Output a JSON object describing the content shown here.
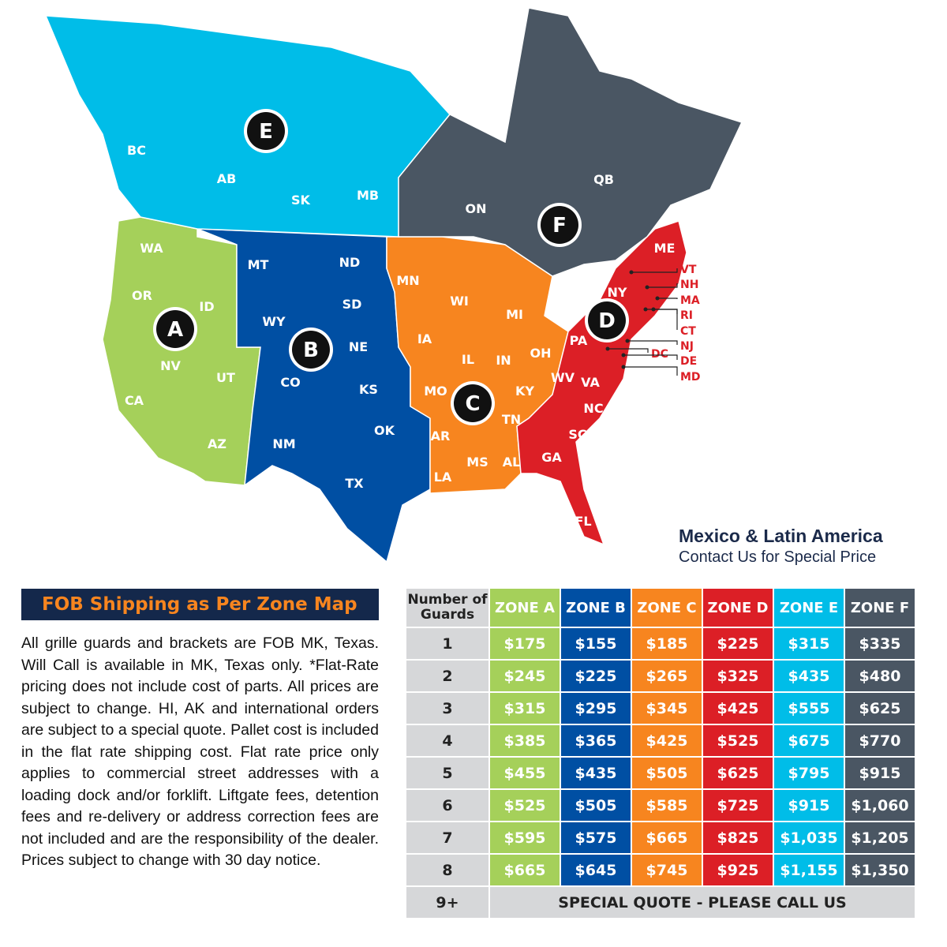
{
  "colors": {
    "A": "#a5d05a",
    "B": "#004fa3",
    "C": "#f7851f",
    "D": "#dc1f26",
    "E": "#00bde8",
    "F": "#4a5663",
    "header_bg": "#14284b",
    "header_text": "#f7851f"
  },
  "map": {
    "zones": [
      {
        "letter": "A",
        "states": [
          "WA",
          "OR",
          "ID",
          "NV",
          "CA",
          "UT",
          "AZ"
        ]
      },
      {
        "letter": "B",
        "states": [
          "MT",
          "ND",
          "SD",
          "WY",
          "NE",
          "CO",
          "KS",
          "NM",
          "OK",
          "TX"
        ]
      },
      {
        "letter": "C",
        "states": [
          "MN",
          "WI",
          "MI",
          "IA",
          "IL",
          "IN",
          "OH",
          "MO",
          "KY",
          "TN",
          "AR",
          "MS",
          "AL",
          "LA"
        ]
      },
      {
        "letter": "D",
        "states": [
          "ME",
          "NY",
          "PA",
          "WV",
          "VA",
          "NC",
          "SC",
          "GA",
          "FL"
        ],
        "callouts": [
          "VT",
          "NH",
          "MA",
          "RI",
          "CT",
          "NJ",
          "DC",
          "DE",
          "MD"
        ]
      },
      {
        "letter": "E",
        "states": [
          "BC",
          "AB",
          "SK",
          "MB"
        ]
      },
      {
        "letter": "F",
        "states": [
          "ON",
          "QB"
        ]
      }
    ]
  },
  "mexico": {
    "title": "Mexico & Latin America",
    "subtitle": "Contact Us for Special Price"
  },
  "info": {
    "title": "FOB Shipping as Per Zone Map",
    "text": "All grille guards and brackets are FOB MK, Texas. Will Call is available in MK, Texas only. *Flat-Rate pricing does not include cost of parts. All prices are subject to change. HI, AK and international orders are subject to a special quote. Pallet cost is included in the flat rate shipping cost. Flat rate price only applies to commercial street addresses with a loading dock and/or forklift. Liftgate fees, detention fees and re-delivery or address correction fees are not included and are the responsibility of the dealer. Prices subject to change with 30 day notice."
  },
  "table": {
    "header_first": "Number of Guards",
    "columns": [
      "ZONE A",
      "ZONE B",
      "ZONE C",
      "ZONE D",
      "ZONE E",
      "ZONE F"
    ],
    "rows": [
      {
        "n": "1",
        "v": [
          "$175",
          "$155",
          "$185",
          "$225",
          "$315",
          "$335"
        ]
      },
      {
        "n": "2",
        "v": [
          "$245",
          "$225",
          "$265",
          "$325",
          "$435",
          "$480"
        ]
      },
      {
        "n": "3",
        "v": [
          "$315",
          "$295",
          "$345",
          "$425",
          "$555",
          "$625"
        ]
      },
      {
        "n": "4",
        "v": [
          "$385",
          "$365",
          "$425",
          "$525",
          "$675",
          "$770"
        ]
      },
      {
        "n": "5",
        "v": [
          "$455",
          "$435",
          "$505",
          "$625",
          "$795",
          "$915"
        ]
      },
      {
        "n": "6",
        "v": [
          "$525",
          "$505",
          "$585",
          "$725",
          "$915",
          "$1,060"
        ]
      },
      {
        "n": "7",
        "v": [
          "$595",
          "$575",
          "$665",
          "$825",
          "$1,035",
          "$1,205"
        ]
      },
      {
        "n": "8",
        "v": [
          "$665",
          "$645",
          "$745",
          "$925",
          "$1,155",
          "$1,350"
        ]
      }
    ],
    "last_row": {
      "n": "9+",
      "text": "SPECIAL QUOTE - PLEASE CALL US"
    }
  }
}
